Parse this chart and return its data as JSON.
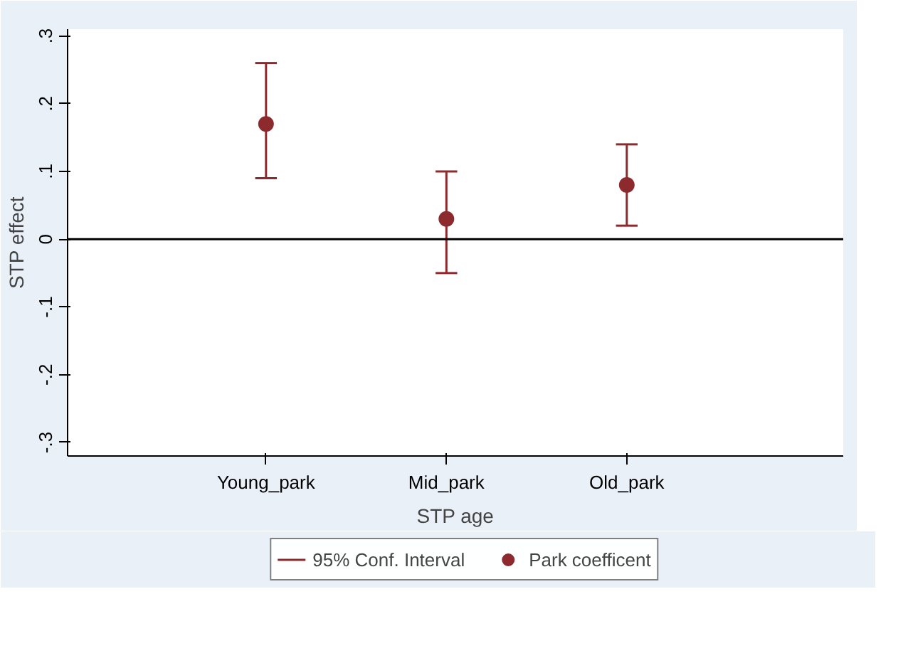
{
  "chart_data": {
    "type": "scatter",
    "xlabel": "STP age",
    "ylabel": "STP effect",
    "categories": [
      "Young_park",
      "Mid_park",
      "Old_park"
    ],
    "series": [
      {
        "name": "Park coefficent",
        "color": "#8c2a2e",
        "values": [
          0.17,
          0.03,
          0.08
        ],
        "errors": [
          [
            0.09,
            0.26
          ],
          [
            -0.05,
            0.1
          ],
          [
            0.02,
            0.14
          ]
        ]
      }
    ],
    "ylim": [
      -0.32,
      0.31
    ],
    "yticks": [
      {
        "value": -0.3,
        "label": "-.3"
      },
      {
        "value": -0.2,
        "label": "-.2"
      },
      {
        "value": -0.1,
        "label": "-.1"
      },
      0,
      {
        "value": 0.1,
        "label": ".1"
      },
      {
        "value": 0.2,
        "label": ".2"
      },
      {
        "value": 0.3,
        "label": ".3"
      }
    ],
    "ref_lines": [
      {
        "axis": "y",
        "value": 0,
        "color": "#000000"
      }
    ],
    "annotations": [
      "95% Conf. Interval"
    ],
    "grid": false,
    "legend": "bottom",
    "marker": "circle"
  }
}
